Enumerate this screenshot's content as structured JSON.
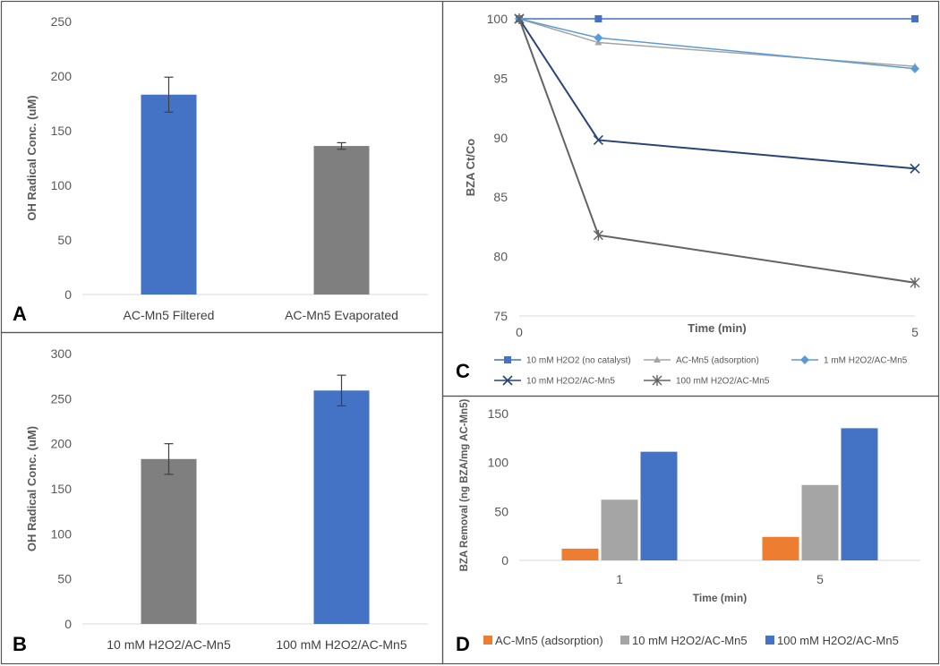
{
  "chart_data": [
    {
      "id": "A",
      "type": "bar",
      "panel_label": "A",
      "ylabel": "OH Radical Conc. (uM)",
      "ylim": [
        0,
        250
      ],
      "yticks": [
        0,
        50,
        100,
        150,
        200,
        250
      ],
      "categories": [
        "AC-Mn5 Filtered",
        "AC-Mn5 Evaporated"
      ],
      "values": [
        183,
        136
      ],
      "errors": [
        16,
        3
      ],
      "colors": [
        "#4472c4",
        "#7f7f7f"
      ]
    },
    {
      "id": "B",
      "type": "bar",
      "panel_label": "B",
      "ylabel": "OH Radical Conc. (uM)",
      "ylim": [
        0,
        300
      ],
      "yticks": [
        0,
        50,
        100,
        150,
        200,
        250,
        300
      ],
      "categories": [
        "10 mM H2O2/AC-Mn5",
        "100 mM H2O2/AC-Mn5"
      ],
      "values": [
        183,
        259
      ],
      "errors": [
        17,
        17
      ],
      "colors": [
        "#7f7f7f",
        "#4472c4"
      ]
    },
    {
      "id": "C",
      "type": "line",
      "panel_label": "C",
      "xlabel": "Time (min)",
      "ylabel": "BZA Ct/Co",
      "x": [
        0,
        1,
        5
      ],
      "xticks": [
        0,
        5
      ],
      "xlim": [
        0,
        5
      ],
      "ylim": [
        75,
        100
      ],
      "yticks": [
        75,
        80,
        85,
        90,
        95,
        100
      ],
      "series": [
        {
          "name": "10 mM H2O2 (no catalyst)",
          "values": [
            100,
            100,
            100
          ],
          "color": "#4472c4",
          "marker": "square"
        },
        {
          "name": "AC-Mn5 (adsorption)",
          "values": [
            100,
            98.0,
            96.0
          ],
          "color": "#a5a5a5",
          "marker": "triangle"
        },
        {
          "name": "1 mM H2O2/AC-Mn5",
          "values": [
            100,
            98.4,
            95.8
          ],
          "color": "#5b9bd5",
          "marker": "diamond"
        },
        {
          "name": "10 mM H2O2/AC-Mn5",
          "values": [
            100,
            89.8,
            87.4
          ],
          "color": "#264478",
          "marker": "x"
        },
        {
          "name": "100 mM H2O2/AC-Mn5",
          "values": [
            100,
            81.8,
            77.8
          ],
          "color": "#636363",
          "marker": "star"
        }
      ]
    },
    {
      "id": "D",
      "type": "bar",
      "panel_label": "D",
      "xlabel": "Time (min)",
      "ylabel": "BZA Removal (ng BZA/mg AC-Mn5)",
      "ylim": [
        0,
        150
      ],
      "yticks": [
        0,
        50,
        100,
        150
      ],
      "categories": [
        "1",
        "5"
      ],
      "series": [
        {
          "name": "AC-Mn5 (adsorption)",
          "values": [
            12,
            24
          ],
          "color": "#ed7d31"
        },
        {
          "name": "10 mM H2O2/AC-Mn5",
          "values": [
            62,
            77
          ],
          "color": "#a5a5a5"
        },
        {
          "name": "100 mM H2O2/AC-Mn5",
          "values": [
            111,
            135
          ],
          "color": "#4472c4"
        }
      ]
    }
  ]
}
